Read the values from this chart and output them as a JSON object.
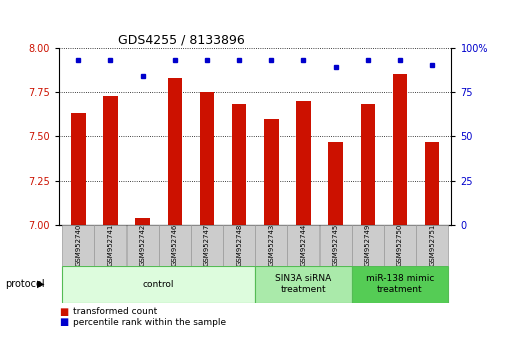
{
  "title": "GDS4255 / 8133896",
  "samples": [
    "GSM952740",
    "GSM952741",
    "GSM952742",
    "GSM952746",
    "GSM952747",
    "GSM952748",
    "GSM952743",
    "GSM952744",
    "GSM952745",
    "GSM952749",
    "GSM952750",
    "GSM952751"
  ],
  "red_values": [
    7.63,
    7.73,
    7.04,
    7.83,
    7.75,
    7.68,
    7.6,
    7.7,
    7.47,
    7.68,
    7.85,
    7.47
  ],
  "blue_values": [
    93,
    93,
    84,
    93,
    93,
    93,
    93,
    93,
    89,
    93,
    93,
    90
  ],
  "ylim_left": [
    7.0,
    8.0
  ],
  "ylim_right": [
    0,
    100
  ],
  "yticks_left": [
    7.0,
    7.25,
    7.5,
    7.75,
    8.0
  ],
  "yticks_right": [
    0,
    25,
    50,
    75,
    100
  ],
  "groups": [
    {
      "label": "control",
      "start": 0,
      "end": 6,
      "color": "#ddfcdd",
      "edge_color": "#55bb55"
    },
    {
      "label": "SIN3A siRNA\ntreatment",
      "start": 6,
      "end": 9,
      "color": "#aaeaaa",
      "edge_color": "#55bb55"
    },
    {
      "label": "miR-138 mimic\ntreatment",
      "start": 9,
      "end": 12,
      "color": "#55cc55",
      "edge_color": "#55bb55"
    }
  ],
  "bar_color": "#cc1100",
  "dot_color": "#0000cc",
  "bar_width": 0.45,
  "legend_items": [
    {
      "color": "#cc1100",
      "label": "transformed count"
    },
    {
      "color": "#0000cc",
      "label": "percentile rank within the sample"
    }
  ],
  "protocol_label": "protocol",
  "left_tick_color": "#cc1100",
  "right_tick_color": "#0000cc",
  "title_fontsize": 9,
  "tick_fontsize": 7,
  "sample_fontsize": 5,
  "group_fontsize": 6.5,
  "legend_fontsize": 6.5
}
